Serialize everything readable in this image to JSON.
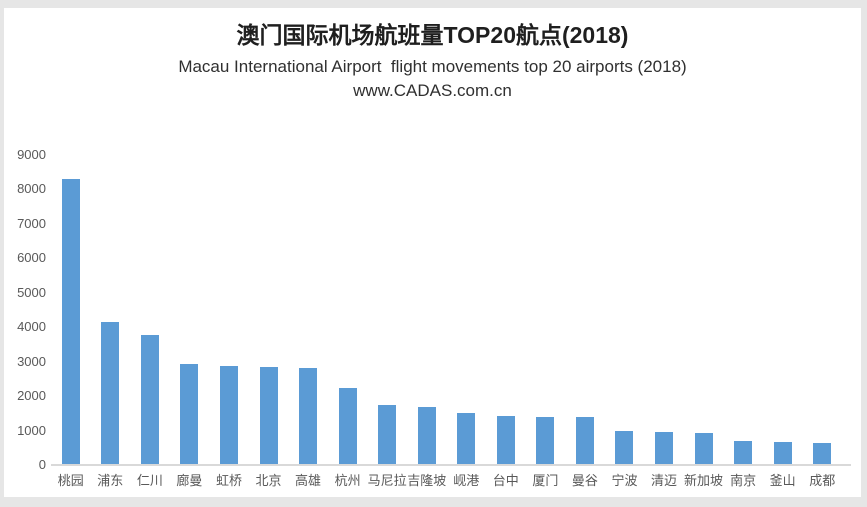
{
  "header": {
    "title_cn": "澳门国际机场航班量TOP20航点(2018)",
    "subtitle_en": "Macau International Airport  flight movements top 20 airports (2018)",
    "website": "www.CADAS.com.cn"
  },
  "colors": {
    "bar": "#5b9bd5",
    "axis_line": "#d9d9d9",
    "tick_text": "#595959",
    "page_background": "#e6e6e6",
    "panel_background": "#ffffff"
  },
  "chart_data": {
    "type": "bar",
    "title": "澳门国际机场航班量TOP20航点(2018)",
    "subtitle": "Macau International Airport  flight movements top 20 airports (2018)",
    "source": "www.CADAS.com.cn",
    "categories": [
      "桃园",
      "浦东",
      "仁川",
      "廊曼",
      "虹桥",
      "北京",
      "高雄",
      "杭州",
      "马尼拉",
      "吉隆坡",
      "岘港",
      "台中",
      "厦门",
      "曼谷",
      "宁波",
      "清迈",
      "新加坡",
      "南京",
      "釜山",
      "成都"
    ],
    "values": [
      8290,
      4150,
      3780,
      2940,
      2880,
      2840,
      2810,
      2240,
      1740,
      1680,
      1510,
      1420,
      1400,
      1395,
      1000,
      970,
      920,
      685,
      680,
      645
    ],
    "yticks": [
      0,
      1000,
      2000,
      3000,
      4000,
      5000,
      6000,
      7000,
      8000,
      9000
    ],
    "xlabel": "",
    "ylabel": "",
    "ylim": [
      0,
      9000
    ],
    "grid": false,
    "legend": "none",
    "bar_color": "#5b9bd5"
  }
}
